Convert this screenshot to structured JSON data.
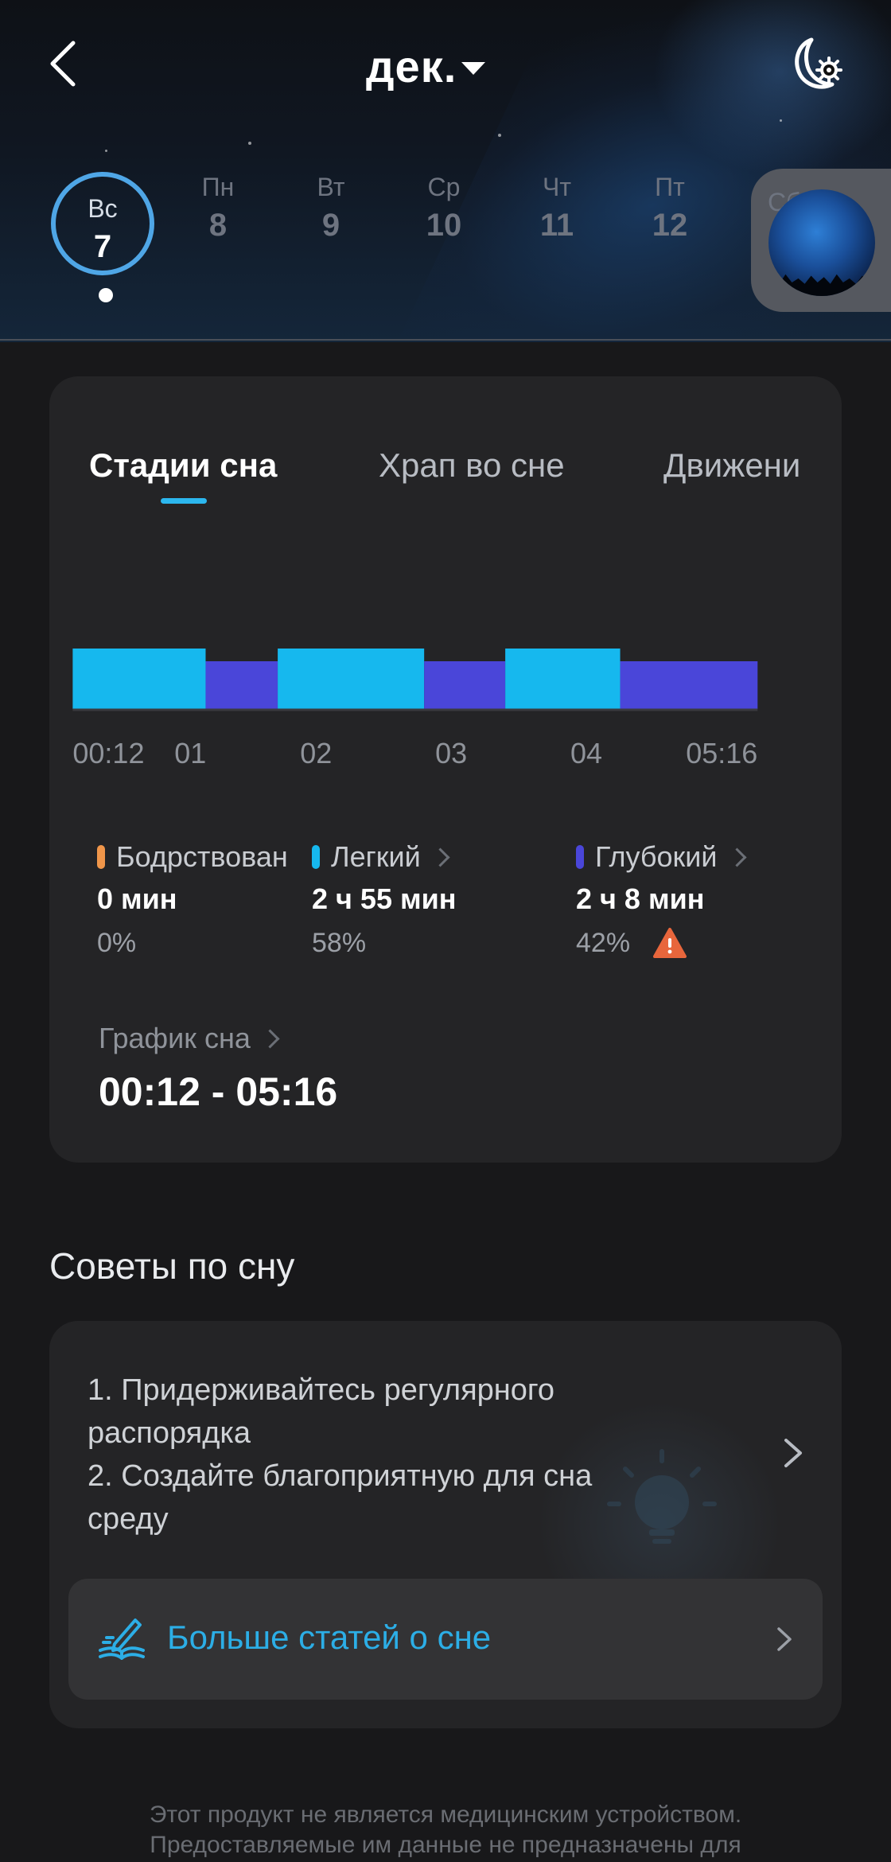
{
  "header": {
    "title": "дек.",
    "back_icon": "back-arrow-icon",
    "settings_icon": "moon-settings-icon",
    "days": [
      {
        "name": "Вс",
        "num": "7",
        "selected": true
      },
      {
        "name": "Пн",
        "num": "8"
      },
      {
        "name": "Вт",
        "num": "9"
      },
      {
        "name": "Ср",
        "num": "10"
      },
      {
        "name": "Чт",
        "num": "11"
      },
      {
        "name": "Пт",
        "num": "12"
      }
    ],
    "next_day_hint": "Сб"
  },
  "sleep_card": {
    "tabs": [
      "Стадии сна",
      "Храп во сне",
      "Движени"
    ],
    "active_tab": 0,
    "stats": [
      {
        "label": "Бодрствован",
        "value": "0 мин",
        "percent": "0%",
        "color": "#f0964a"
      },
      {
        "label": "Легкий",
        "value": "2 ч 55 мин",
        "percent": "58%",
        "color": "#16b8ee"
      },
      {
        "label": "Глубокий",
        "value": "2 ч 8 мин",
        "percent": "42%",
        "color": "#4a46d9",
        "warning_icon": "warning-icon"
      }
    ],
    "schedule_label": "График сна",
    "schedule_value": "00:12 - 05:16"
  },
  "chart_data": {
    "type": "bar",
    "title": "",
    "x_tick_labels": [
      "00:12",
      "01",
      "02",
      "03",
      "04",
      "05:16"
    ],
    "x_ticks_hours": [
      0.2,
      1,
      2,
      3,
      4,
      5.2667
    ],
    "segments": [
      {
        "stage": "Легкий",
        "start": "00:12",
        "end": "01:11"
      },
      {
        "stage": "Глубокий",
        "start": "01:11",
        "end": "01:43"
      },
      {
        "stage": "Легкий",
        "start": "01:43",
        "end": "02:48"
      },
      {
        "stage": "Глубокий",
        "start": "02:48",
        "end": "03:24"
      },
      {
        "stage": "Легкий",
        "start": "03:24",
        "end": "04:15"
      },
      {
        "stage": "Глубокий",
        "start": "04:15",
        "end": "05:16"
      }
    ],
    "stage_colors": {
      "Легкий": "#16b8ee",
      "Глубокий": "#4a46d9"
    },
    "grid": false
  },
  "tips": {
    "title": "Советы по сну",
    "lines": [
      "1. Придерживайтесь регулярного",
      "распорядка",
      "2. Создайте благоприятную для сна",
      "среду"
    ],
    "decor_icon": "lightbulb-icon",
    "more_label": "Больше статей о сне",
    "more_icon": "book-icon"
  },
  "disclaimer": [
    "Этот продукт не является медицинским устройством.",
    "Предоставляемые им данные не предназначены для"
  ]
}
